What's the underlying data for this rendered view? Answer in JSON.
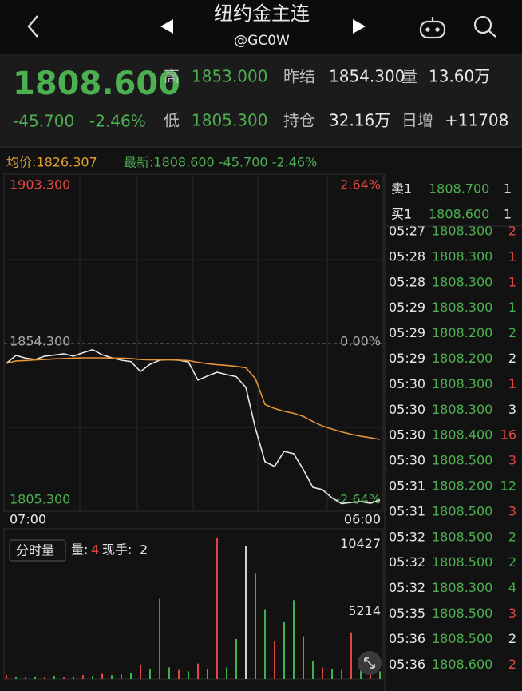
{
  "header": {
    "title": "纽约金主连",
    "subtitle": "@GC0W"
  },
  "quote": {
    "price": "1808.600",
    "change": "-45.700",
    "change_pct": "-2.46%",
    "fields": [
      {
        "label": "高",
        "value": "1853.000"
      },
      {
        "label": "昨结",
        "value": "1854.300"
      },
      {
        "label": "量",
        "value": "13.60万"
      },
      {
        "label": "低",
        "value": "1805.300"
      },
      {
        "label": "持仓",
        "value": "32.16万"
      },
      {
        "label": "日增",
        "value": "+11708"
      }
    ]
  },
  "info": {
    "avg": "均价:1826.307",
    "latest": "最新:1808.600 -45.700 -2.46%"
  },
  "chart_data": [
    {
      "type": "line",
      "x_labels": [
        "07:00",
        "06:00"
      ],
      "series": [
        {
          "color": "#e8e8e8",
          "values": [
            1848.5,
            1850.8,
            1850.0,
            1849.6,
            1850.6,
            1850.9,
            1851.3,
            1850.6,
            1851.6,
            1852.5,
            1851.0,
            1850.1,
            1849.4,
            1849.0,
            1846.1,
            1848.2,
            1849.4,
            1849.6,
            1849.4,
            1848.9,
            1843.6,
            1844.8,
            1845.9,
            1845.2,
            1844.6,
            1841.5,
            1829.5,
            1819.8,
            1818.4,
            1822.8,
            1822.1,
            1817.5,
            1812.3,
            1811.6,
            1809.2,
            1807.5,
            1807.9,
            1808.1,
            1807.6,
            1808.6
          ]
        },
        {
          "color": "#e8943a",
          "values": [
            1848.5,
            1849.2,
            1849.3,
            1849.5,
            1849.6,
            1849.8,
            1849.9,
            1850.0,
            1850.1,
            1850.1,
            1850.1,
            1850.0,
            1850.0,
            1849.9,
            1849.6,
            1849.5,
            1849.5,
            1849.5,
            1849.4,
            1849.3,
            1848.8,
            1848.4,
            1848.1,
            1847.9,
            1847.6,
            1847.2,
            1844.0,
            1836.5,
            1835.3,
            1834.5,
            1833.9,
            1833.0,
            1831.5,
            1830.2,
            1829.3,
            1828.5,
            1827.8,
            1827.2,
            1826.8,
            1826.3
          ]
        }
      ],
      "ylim": [
        1805.3,
        1903.3
      ],
      "yticks": [
        {
          "value": 1903.3,
          "label": "1903.300"
        },
        {
          "value": 1854.3,
          "label": "1854.300"
        },
        {
          "value": 1805.3,
          "label": "1805.300"
        }
      ],
      "y2lim": [
        -2.64,
        2.64
      ],
      "y2ticks": [
        {
          "value": 2.64,
          "label": "2.64%"
        },
        {
          "value": 0,
          "label": "0.00%"
        },
        {
          "value": -2.64,
          "label": "-2.64%"
        }
      ]
    },
    {
      "type": "bar",
      "values": [
        300,
        200,
        150,
        200,
        150,
        250,
        180,
        200,
        300,
        250,
        400,
        300,
        350,
        500,
        1100,
        800,
        6200,
        900,
        700,
        600,
        1200,
        800,
        10900,
        900,
        3100,
        10300,
        8200,
        5400,
        2900,
        4400,
        6100,
        3300,
        1400,
        900,
        800,
        700,
        3600,
        900,
        700,
        600
      ],
      "colors": [
        "#e0483f",
        "#3fb04a",
        "#e0483f",
        "#3fb04a",
        "#e0483f",
        "#3fb04a",
        "#e0483f",
        "#3fb04a",
        "#e0483f",
        "#3fb04a",
        "#e0483f",
        "#3fb04a",
        "#e0483f",
        "#3fb04a",
        "#e0483f",
        "#3fb04a",
        "#e0483f",
        "#3fb04a",
        "#e0483f",
        "#3fb04a",
        "#e0483f",
        "#3fb04a",
        "#e0483f",
        "#3fb04a",
        "#3fb04a",
        "#cfcfcf",
        "#3fb04a",
        "#3fb04a",
        "#e0483f",
        "#3fb04a",
        "#3fb04a",
        "#3fb04a",
        "#3fb04a",
        "#e0483f",
        "#3fb04a",
        "#e0483f",
        "#e0483f",
        "#3fb04a",
        "#e0483f",
        "#3fb04a"
      ],
      "ylim": [
        0,
        11000
      ],
      "yticks": [
        10427,
        5214
      ]
    }
  ],
  "volume_panel": {
    "button": "分时量",
    "vol_label": "量:",
    "vol": "4",
    "hand_label": "现手:",
    "hand": "2"
  },
  "order_book": [
    {
      "label": "卖1",
      "price": "1808.700",
      "qty": "1"
    },
    {
      "label": "买1",
      "price": "1808.600",
      "qty": "1"
    }
  ],
  "trades": [
    {
      "time": "05:27",
      "price": "1808.300",
      "qty": "2",
      "color": "#e0483f"
    },
    {
      "time": "05:28",
      "price": "1808.300",
      "qty": "1",
      "color": "#e0483f"
    },
    {
      "time": "05:28",
      "price": "1808.300",
      "qty": "1",
      "color": "#e0483f"
    },
    {
      "time": "05:29",
      "price": "1808.300",
      "qty": "1",
      "color": "#3fb04a"
    },
    {
      "time": "05:29",
      "price": "1808.200",
      "qty": "2",
      "color": "#3fb04a"
    },
    {
      "time": "05:29",
      "price": "1808.200",
      "qty": "2",
      "color": "#e8e8e8"
    },
    {
      "time": "05:30",
      "price": "1808.300",
      "qty": "1",
      "color": "#e0483f"
    },
    {
      "time": "05:30",
      "price": "1808.300",
      "qty": "3",
      "color": "#e8e8e8"
    },
    {
      "time": "05:30",
      "price": "1808.400",
      "qty": "16",
      "color": "#e0483f"
    },
    {
      "time": "05:30",
      "price": "1808.500",
      "qty": "3",
      "color": "#e0483f"
    },
    {
      "time": "05:31",
      "price": "1808.200",
      "qty": "12",
      "color": "#3fb04a"
    },
    {
      "time": "05:31",
      "price": "1808.500",
      "qty": "3",
      "color": "#e0483f"
    },
    {
      "time": "05:32",
      "price": "1808.500",
      "qty": "2",
      "color": "#3fb04a"
    },
    {
      "time": "05:32",
      "price": "1808.500",
      "qty": "2",
      "color": "#3fb04a"
    },
    {
      "time": "05:32",
      "price": "1808.300",
      "qty": "4",
      "color": "#3fb04a"
    },
    {
      "time": "05:35",
      "price": "1808.500",
      "qty": "3",
      "color": "#e0483f"
    },
    {
      "time": "05:36",
      "price": "1808.500",
      "qty": "2",
      "color": "#e8e8e8"
    },
    {
      "time": "05:36",
      "price": "1808.600",
      "qty": "2",
      "color": "#e0483f"
    }
  ]
}
